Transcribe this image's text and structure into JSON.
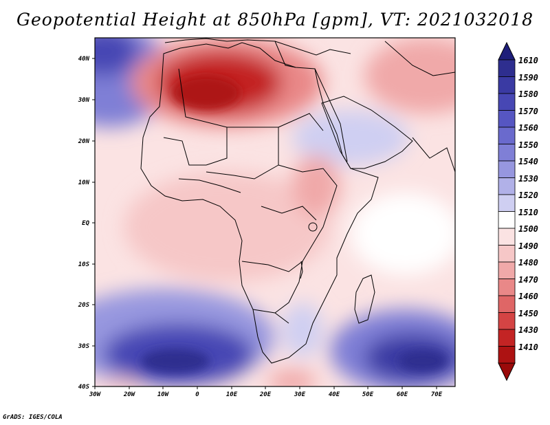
{
  "title": "Geopotential Height at 850hPa [gpm], VT: 2021032018",
  "footer": "GrADS: IGES/COLA",
  "map": {
    "lon_labels": [
      "30W",
      "20W",
      "10W",
      "0",
      "10E",
      "20E",
      "30E",
      "40E",
      "50E",
      "60E",
      "70E"
    ],
    "lat_labels": [
      "40N",
      "30N",
      "20N",
      "10N",
      "EQ",
      "10S",
      "20S",
      "30S",
      "40S"
    ]
  },
  "colorbar": {
    "labels": [
      "1610",
      "1590",
      "1580",
      "1570",
      "1560",
      "1550",
      "1540",
      "1530",
      "1520",
      "1510",
      "1500",
      "1490",
      "1480",
      "1470",
      "1460",
      "1450",
      "1430",
      "1410"
    ],
    "colors": [
      "#2e2e8f",
      "#3a3aa3",
      "#4747b4",
      "#5656c2",
      "#6a6acd",
      "#7f7fd6",
      "#9797df",
      "#b1b1e8",
      "#cfcff2",
      "#ffffff",
      "#fbe3e3",
      "#f6c7c7",
      "#f0a9a9",
      "#e98888",
      "#df6666",
      "#d44444",
      "#c32424",
      "#ad1212"
    ]
  }
}
